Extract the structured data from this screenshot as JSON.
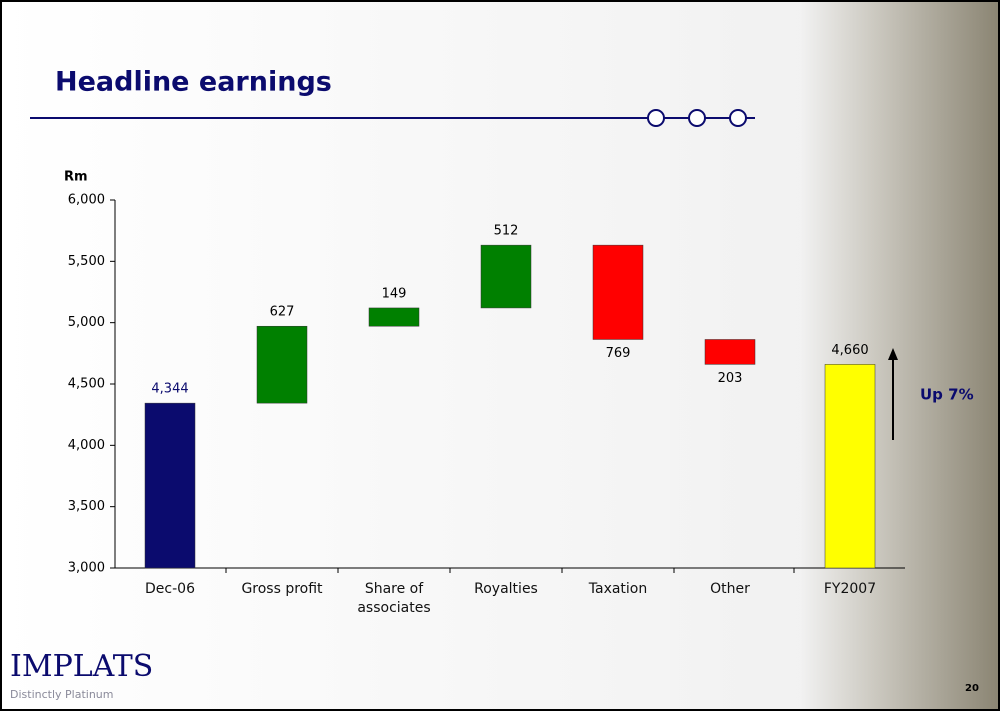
{
  "chart_data": {
    "type": "waterfall",
    "title": "Headline earnings",
    "y_label": "Rm",
    "categories": [
      "Dec-06",
      "Gross profit",
      "Share of associates",
      "Royalties",
      "Taxation",
      "Other",
      "FY2007"
    ],
    "values": [
      4344,
      627,
      149,
      512,
      -769,
      -203,
      4660
    ],
    "value_labels": [
      "4,344",
      "627",
      "149",
      "512",
      "769",
      "203",
      "4,660"
    ],
    "colors": [
      "#0b0b6e",
      "#008000",
      "#008000",
      "#008000",
      "#ff0000",
      "#ff0000",
      "#ffff00"
    ],
    "ylim": [
      3000,
      6000
    ],
    "yticks": [
      {
        "value": 3000,
        "label": "3,000"
      },
      {
        "value": 3500,
        "label": "3,500"
      },
      {
        "value": 4000,
        "label": "4,000"
      },
      {
        "value": 4500,
        "label": "4,500"
      },
      {
        "value": 5000,
        "label": "5,000"
      },
      {
        "value": 5500,
        "label": "5,500"
      },
      {
        "value": 6000,
        "label": "6,000"
      }
    ],
    "annotation": "Up 7%"
  },
  "footer": {
    "logo": "IMPLATS",
    "tagline": "Distinctly Platinum",
    "page_number": "20"
  }
}
